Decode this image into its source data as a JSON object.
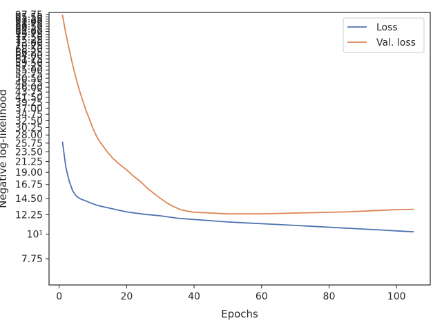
{
  "chart_data": {
    "type": "line",
    "xlabel": "Epochs",
    "ylabel": "Negative log-likelihood",
    "xlim": [
      -3,
      110
    ],
    "ylim": [
      5.9,
      100
    ],
    "yscale": "log",
    "grid": false,
    "legend_position": "top-right",
    "x_ticks": [
      0,
      20,
      40,
      60,
      80,
      100
    ],
    "x_tick_labels": [
      "0",
      "20",
      "40",
      "60",
      "80",
      "100"
    ],
    "y_ticks": [
      7.75,
      10,
      12.25,
      14.5,
      16.75,
      19,
      21.25,
      23.5,
      25.75,
      28,
      30.25,
      32.5,
      34.75,
      37,
      39.25,
      41.5,
      43.75,
      46,
      48.25,
      50.5,
      52.75,
      55,
      57.25,
      59.5,
      61.75,
      64,
      66.25,
      68.5,
      70.75,
      73,
      75.25,
      77.5,
      79.75,
      82,
      84.25,
      86.5,
      88.75,
      91,
      93.25,
      95.5,
      97.75
    ],
    "y_tick_labels": [
      "7.75",
      "10¹",
      "12.25",
      "14.50",
      "16.75",
      "19.00",
      "21.25",
      "23.50",
      "25.75",
      "28.00",
      "30.25",
      "32.50",
      "34.75",
      "37.00",
      "39.25",
      "41.50",
      "43.75",
      "46.00",
      "48.25",
      "50.50",
      "52.75",
      "55.00",
      "57.25",
      "59.50",
      "61.75",
      "64.00",
      "66.25",
      "68.50",
      "70.75",
      "73.00",
      "75.25",
      "77.50",
      "79.75",
      "82.00",
      "84.25",
      "86.50",
      "88.75",
      "91.00",
      "93.25",
      "95.50",
      "97.75"
    ],
    "series": [
      {
        "name": "Loss",
        "color": "#4c72b0",
        "x": [
          1,
          2,
          3,
          4,
          5,
          6,
          7,
          8,
          9,
          10,
          12,
          15,
          18,
          20,
          25,
          30,
          35,
          40,
          45,
          50,
          55,
          60,
          65,
          70,
          75,
          80,
          85,
          90,
          95,
          100,
          105
        ],
        "y": [
          26.0,
          20.0,
          17.3,
          15.7,
          14.9,
          14.5,
          14.3,
          14.1,
          13.9,
          13.7,
          13.4,
          13.1,
          12.8,
          12.6,
          12.3,
          12.1,
          11.8,
          11.65,
          11.5,
          11.35,
          11.25,
          11.15,
          11.05,
          10.95,
          10.85,
          10.75,
          10.65,
          10.55,
          10.45,
          10.35,
          10.25
        ]
      },
      {
        "name": "Val. loss",
        "color": "#dd8452",
        "x": [
          1,
          2,
          3,
          4,
          5,
          6,
          7,
          8,
          9,
          10,
          11,
          12,
          14,
          16,
          18,
          20,
          22,
          24,
          26,
          28,
          30,
          32,
          34,
          36,
          38,
          40,
          45,
          50,
          55,
          60,
          65,
          70,
          75,
          80,
          85,
          90,
          95,
          100,
          105
        ],
        "y": [
          97.0,
          80.0,
          68.0,
          58.0,
          50.5,
          44.5,
          40.0,
          36.0,
          33.0,
          30.0,
          27.8,
          26.2,
          23.8,
          21.9,
          20.6,
          19.5,
          18.3,
          17.3,
          16.2,
          15.3,
          14.5,
          13.8,
          13.3,
          12.9,
          12.7,
          12.55,
          12.45,
          12.35,
          12.35,
          12.35,
          12.4,
          12.45,
          12.5,
          12.55,
          12.6,
          12.7,
          12.8,
          12.9,
          12.95
        ]
      }
    ]
  }
}
